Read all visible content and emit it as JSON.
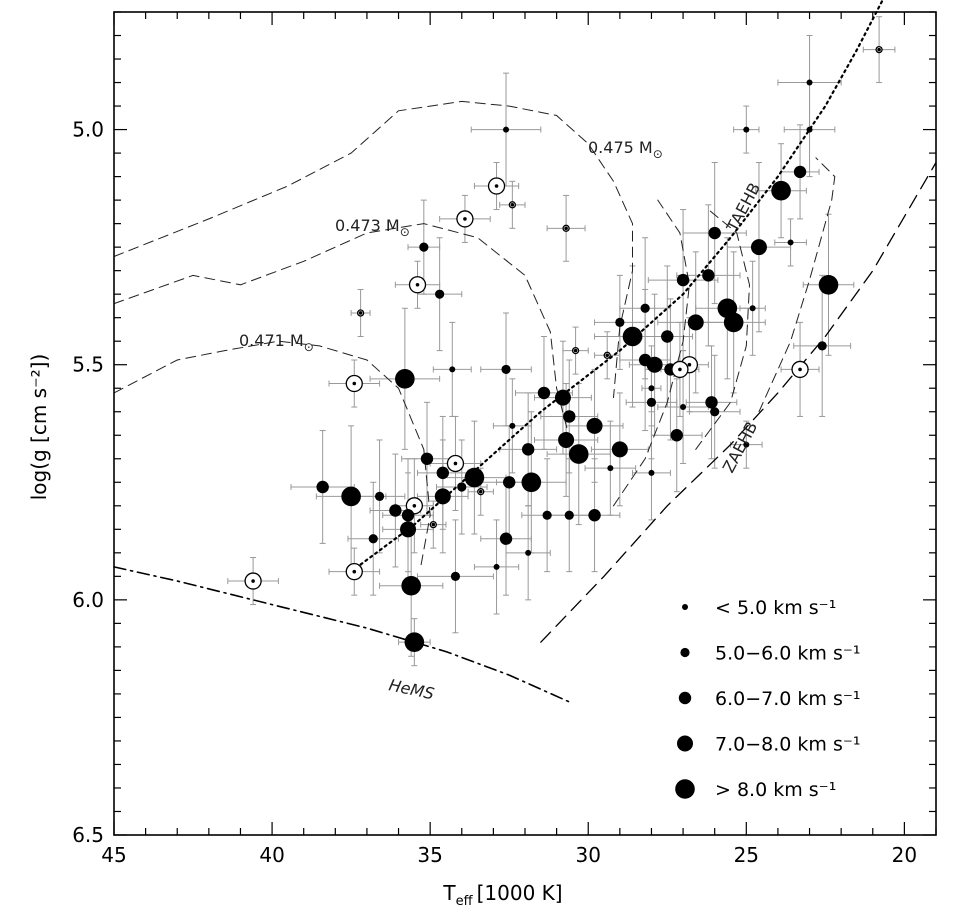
{
  "chart_data": {
    "type": "scatter",
    "xlabel": "T",
    "xlabel_sub": "eff",
    "xlabel_unit": "[1000 K]",
    "ylabel": "log(g [cm s⁻²])",
    "xlim": [
      45,
      19
    ],
    "ylim": [
      6.5,
      4.75
    ],
    "x_ticks": [
      45,
      40,
      35,
      30,
      25,
      20
    ],
    "y_ticks": [
      5.0,
      5.5,
      6.0,
      6.5
    ],
    "x_tick_labels": [
      "45",
      "40",
      "35",
      "30",
      "25",
      "20"
    ],
    "y_tick_labels": [
      "5.0",
      "5.5",
      "6.0",
      "6.5"
    ],
    "grid": false,
    "legend_placement": "bottom-right",
    "legend": [
      {
        "label": "< 5.0 km s⁻¹",
        "size": 1
      },
      {
        "label": "5.0−6.0 km s⁻¹",
        "size": 2
      },
      {
        "label": "6.0−7.0 km s⁻¹",
        "size": 3
      },
      {
        "label": "7.0−8.0 km s⁻¹",
        "size": 4
      },
      {
        "label": "> 8.0 km s⁻¹",
        "size": 5
      }
    ],
    "curve_labels": {
      "m475": "0.475 M",
      "m473": "0.473 M",
      "m471": "0.471 M",
      "taehb": "TAEHB",
      "zaehb": "ZAEHB",
      "hems": "HeMS"
    },
    "lines": [
      {
        "name": "ZAEHB",
        "style": "dashed",
        "points": [
          [
            31.5,
            6.09
          ],
          [
            29.5,
            5.95
          ],
          [
            27.5,
            5.8
          ],
          [
            25.5,
            5.67
          ],
          [
            24.0,
            5.56
          ],
          [
            22.5,
            5.44
          ],
          [
            21.0,
            5.3
          ],
          [
            19.0,
            5.07
          ]
        ]
      },
      {
        "name": "TAEHB",
        "style": "dotted",
        "points": [
          [
            37.5,
            5.94
          ],
          [
            35.5,
            5.84
          ],
          [
            33.5,
            5.72
          ],
          [
            31.5,
            5.6
          ],
          [
            29.0,
            5.47
          ],
          [
            27.0,
            5.35
          ],
          [
            25.5,
            5.23
          ],
          [
            24.0,
            5.1
          ],
          [
            22.5,
            4.95
          ],
          [
            21.5,
            4.83
          ],
          [
            20.5,
            4.7
          ]
        ]
      },
      {
        "name": "HeMS",
        "style": "dash-dot",
        "points": [
          [
            45,
            5.93
          ],
          [
            43,
            5.96
          ],
          [
            40,
            6.01
          ],
          [
            37,
            6.06
          ],
          [
            34.5,
            6.11
          ],
          [
            32.5,
            6.16
          ],
          [
            30.5,
            6.22
          ]
        ]
      },
      {
        "name": "track 0.475",
        "style": "dashed-thin",
        "points": [
          [
            45,
            5.27
          ],
          [
            42,
            5.19
          ],
          [
            39.5,
            5.12
          ],
          [
            37.5,
            5.05
          ],
          [
            36,
            4.96
          ],
          [
            34,
            4.94
          ],
          [
            32.5,
            4.95
          ],
          [
            31,
            4.97
          ],
          [
            30,
            5.03
          ],
          [
            29.2,
            5.11
          ],
          [
            28.6,
            5.2
          ],
          [
            28.6,
            5.3
          ],
          [
            29.0,
            5.42
          ],
          [
            29.2,
            5.57
          ]
        ]
      },
      {
        "name": "track 0.473",
        "style": "dashed-thin",
        "points": [
          [
            45,
            5.37
          ],
          [
            42.5,
            5.31
          ],
          [
            41,
            5.33
          ],
          [
            39,
            5.28
          ],
          [
            37,
            5.22
          ],
          [
            35.2,
            5.2
          ],
          [
            33.5,
            5.23
          ],
          [
            32.0,
            5.31
          ],
          [
            31.2,
            5.43
          ],
          [
            31.0,
            5.55
          ],
          [
            30.5,
            5.68
          ]
        ]
      },
      {
        "name": "track 0.471",
        "style": "dashed-thin",
        "points": [
          [
            45,
            5.56
          ],
          [
            43,
            5.49
          ],
          [
            41.5,
            5.47
          ],
          [
            39.8,
            5.45
          ],
          [
            38.5,
            5.46
          ],
          [
            37,
            5.49
          ],
          [
            36,
            5.55
          ],
          [
            35.2,
            5.68
          ],
          [
            35.0,
            5.82
          ],
          [
            35.3,
            5.93
          ]
        ]
      },
      {
        "name": "track A",
        "style": "dashed-thin",
        "points": [
          [
            29.2,
            5.8
          ],
          [
            28.2,
            5.7
          ],
          [
            27.5,
            5.58
          ],
          [
            27.0,
            5.45
          ],
          [
            26.8,
            5.33
          ],
          [
            27.1,
            5.22
          ],
          [
            27.8,
            5.15
          ]
        ]
      },
      {
        "name": "track B",
        "style": "dashed-thin",
        "points": [
          [
            26.6,
            5.68
          ],
          [
            25.5,
            5.58
          ],
          [
            25.0,
            5.46
          ],
          [
            24.9,
            5.33
          ],
          [
            25.3,
            5.22
          ],
          [
            26.2,
            5.17
          ]
        ]
      },
      {
        "name": "track C",
        "style": "dashed-thin",
        "points": [
          [
            24.6,
            5.6
          ],
          [
            23.6,
            5.45
          ],
          [
            23.0,
            5.32
          ],
          [
            22.3,
            5.15
          ],
          [
            22.2,
            5.1
          ],
          [
            22.8,
            5.06
          ]
        ]
      }
    ],
    "points": [
      {
        "x": 20.8,
        "y": 4.83,
        "size": 1,
        "open": true,
        "xerr": 0.5,
        "yerr": 0.07
      },
      {
        "x": 23.0,
        "y": 4.9,
        "size": 1,
        "open": false,
        "xerr": 1.0,
        "yerr": 0.1
      },
      {
        "x": 23.0,
        "y": 5.0,
        "size": 1,
        "open": false,
        "xerr": 0.8,
        "yerr": 0.1
      },
      {
        "x": 25.0,
        "y": 5.0,
        "size": 1,
        "open": false,
        "xerr": 0.4,
        "yerr": 0.05
      },
      {
        "x": 32.6,
        "y": 5.0,
        "size": 1,
        "open": false,
        "xerr": 1.1,
        "yerr": 0.12
      },
      {
        "x": 23.3,
        "y": 5.09,
        "size": 3,
        "open": false,
        "xerr": 0.6,
        "yerr": 0.1
      },
      {
        "x": 23.9,
        "y": 5.13,
        "size": 5,
        "open": false,
        "xerr": 0.8,
        "yerr": 0.1
      },
      {
        "x": 32.9,
        "y": 5.12,
        "size": 4,
        "open": true,
        "xerr": 0.7,
        "yerr": 0.05
      },
      {
        "x": 32.4,
        "y": 5.16,
        "size": 1,
        "open": true,
        "xerr": 0.4,
        "yerr": 0.05
      },
      {
        "x": 33.9,
        "y": 5.19,
        "size": 4,
        "open": true,
        "xerr": 0.8,
        "yerr": 0.05
      },
      {
        "x": 30.7,
        "y": 5.21,
        "size": 1,
        "open": true,
        "xerr": 0.6,
        "yerr": 0.07
      },
      {
        "x": 26.0,
        "y": 5.22,
        "size": 3,
        "open": false,
        "xerr": 1.0,
        "yerr": 0.15
      },
      {
        "x": 24.6,
        "y": 5.25,
        "size": 4,
        "open": false,
        "xerr": 1.0,
        "yerr": 0.18
      },
      {
        "x": 23.6,
        "y": 5.24,
        "size": 1,
        "open": false,
        "xerr": 0.5,
        "yerr": 0.05
      },
      {
        "x": 35.2,
        "y": 5.25,
        "size": 2,
        "open": false,
        "xerr": 0.5,
        "yerr": 0.1
      },
      {
        "x": 26.2,
        "y": 5.31,
        "size": 3,
        "open": false,
        "xerr": 1.0,
        "yerr": 0.15
      },
      {
        "x": 27.0,
        "y": 5.32,
        "size": 3,
        "open": false,
        "xerr": 1.1,
        "yerr": 0.15
      },
      {
        "x": 22.4,
        "y": 5.33,
        "size": 5,
        "open": false,
        "xerr": 0.8,
        "yerr": 0.15
      },
      {
        "x": 35.4,
        "y": 5.33,
        "size": 4,
        "open": true,
        "xerr": 0.7,
        "yerr": 0.05
      },
      {
        "x": 34.7,
        "y": 5.35,
        "size": 2,
        "open": false,
        "xerr": 0.7,
        "yerr": 0.12
      },
      {
        "x": 37.2,
        "y": 5.39,
        "size": 1,
        "open": true,
        "xerr": 0.3,
        "yerr": 0.05
      },
      {
        "x": 24.8,
        "y": 5.38,
        "size": 1,
        "open": false,
        "xerr": 0.4,
        "yerr": 0.1
      },
      {
        "x": 25.6,
        "y": 5.38,
        "size": 5,
        "open": false,
        "xerr": 1.0,
        "yerr": 0.15
      },
      {
        "x": 26.6,
        "y": 5.41,
        "size": 4,
        "open": false,
        "xerr": 1.2,
        "yerr": 0.15
      },
      {
        "x": 25.4,
        "y": 5.41,
        "size": 5,
        "open": false,
        "xerr": 1.0,
        "yerr": 0.15
      },
      {
        "x": 28.6,
        "y": 5.44,
        "size": 5,
        "open": false,
        "xerr": 1.2,
        "yerr": 0.15
      },
      {
        "x": 28.2,
        "y": 5.38,
        "size": 2,
        "open": false,
        "xerr": 0.8,
        "yerr": 0.15
      },
      {
        "x": 27.5,
        "y": 5.44,
        "size": 3,
        "open": false,
        "xerr": 0.8,
        "yerr": 0.15
      },
      {
        "x": 29.0,
        "y": 5.41,
        "size": 2,
        "open": false,
        "xerr": 0.8,
        "yerr": 0.1
      },
      {
        "x": 22.6,
        "y": 5.46,
        "size": 2,
        "open": false,
        "xerr": 0.9,
        "yerr": 0.15
      },
      {
        "x": 30.4,
        "y": 5.47,
        "size": 1,
        "open": true,
        "xerr": 0.4,
        "yerr": 0.05
      },
      {
        "x": 29.4,
        "y": 5.48,
        "size": 1,
        "open": true,
        "xerr": 0.4,
        "yerr": 0.05
      },
      {
        "x": 28.2,
        "y": 5.49,
        "size": 3,
        "open": false,
        "xerr": 0.8,
        "yerr": 0.15
      },
      {
        "x": 27.9,
        "y": 5.5,
        "size": 4,
        "open": false,
        "xerr": 0.8,
        "yerr": 0.15
      },
      {
        "x": 27.4,
        "y": 5.51,
        "size": 3,
        "open": false,
        "xerr": 0.8,
        "yerr": 0.15
      },
      {
        "x": 26.8,
        "y": 5.5,
        "size": 4,
        "open": true,
        "xerr": 0.6,
        "yerr": 0.1
      },
      {
        "x": 27.1,
        "y": 5.51,
        "size": 4,
        "open": true,
        "xerr": 0.6,
        "yerr": 0.1
      },
      {
        "x": 23.3,
        "y": 5.51,
        "size": 4,
        "open": true,
        "xerr": 0.6,
        "yerr": 0.1
      },
      {
        "x": 32.6,
        "y": 5.51,
        "size": 2,
        "open": false,
        "xerr": 0.8,
        "yerr": 0.12
      },
      {
        "x": 34.3,
        "y": 5.51,
        "size": 1,
        "open": false,
        "xerr": 0.6,
        "yerr": 0.1
      },
      {
        "x": 28.0,
        "y": 5.55,
        "size": 1,
        "open": false,
        "xerr": 0.3,
        "yerr": 0.05
      },
      {
        "x": 35.8,
        "y": 5.53,
        "size": 5,
        "open": false,
        "xerr": 1.1,
        "yerr": 0.15
      },
      {
        "x": 37.4,
        "y": 5.54,
        "size": 4,
        "open": true,
        "xerr": 0.8,
        "yerr": 0.05
      },
      {
        "x": 31.4,
        "y": 5.56,
        "size": 3,
        "open": false,
        "xerr": 0.9,
        "yerr": 0.12
      },
      {
        "x": 30.8,
        "y": 5.57,
        "size": 4,
        "open": false,
        "xerr": 0.9,
        "yerr": 0.12
      },
      {
        "x": 28.0,
        "y": 5.58,
        "size": 2,
        "open": false,
        "xerr": 0.8,
        "yerr": 0.12
      },
      {
        "x": 26.1,
        "y": 5.58,
        "size": 3,
        "open": false,
        "xerr": 0.8,
        "yerr": 0.12
      },
      {
        "x": 27.0,
        "y": 5.59,
        "size": 1,
        "open": false,
        "xerr": 0.8,
        "yerr": 0.12
      },
      {
        "x": 26.0,
        "y": 5.6,
        "size": 2,
        "open": false,
        "xerr": 0.8,
        "yerr": 0.12
      },
      {
        "x": 30.6,
        "y": 5.61,
        "size": 3,
        "open": false,
        "xerr": 0.9,
        "yerr": 0.12
      },
      {
        "x": 29.8,
        "y": 5.63,
        "size": 4,
        "open": false,
        "xerr": 0.9,
        "yerr": 0.12
      },
      {
        "x": 32.4,
        "y": 5.63,
        "size": 1,
        "open": false,
        "xerr": 0.6,
        "yerr": 0.1
      },
      {
        "x": 27.2,
        "y": 5.65,
        "size": 3,
        "open": false,
        "xerr": 0.8,
        "yerr": 0.12
      },
      {
        "x": 30.7,
        "y": 5.66,
        "size": 4,
        "open": false,
        "xerr": 1.0,
        "yerr": 0.12
      },
      {
        "x": 25.0,
        "y": 5.67,
        "size": 1,
        "open": false,
        "xerr": 0.5,
        "yerr": 0.05
      },
      {
        "x": 31.9,
        "y": 5.68,
        "size": 3,
        "open": false,
        "xerr": 0.9,
        "yerr": 0.12
      },
      {
        "x": 29.0,
        "y": 5.68,
        "size": 4,
        "open": false,
        "xerr": 0.9,
        "yerr": 0.12
      },
      {
        "x": 30.3,
        "y": 5.69,
        "size": 5,
        "open": false,
        "xerr": 1.0,
        "yerr": 0.15
      },
      {
        "x": 35.1,
        "y": 5.7,
        "size": 3,
        "open": false,
        "xerr": 0.8,
        "yerr": 0.12
      },
      {
        "x": 34.2,
        "y": 5.71,
        "size": 4,
        "open": true,
        "xerr": 0.8,
        "yerr": 0.1
      },
      {
        "x": 29.3,
        "y": 5.72,
        "size": 1,
        "open": false,
        "xerr": 0.8,
        "yerr": 0.1
      },
      {
        "x": 28.0,
        "y": 5.73,
        "size": 1,
        "open": false,
        "xerr": 0.6,
        "yerr": 0.1
      },
      {
        "x": 34.6,
        "y": 5.73,
        "size": 3,
        "open": false,
        "xerr": 0.8,
        "yerr": 0.12
      },
      {
        "x": 33.6,
        "y": 5.74,
        "size": 5,
        "open": false,
        "xerr": 1.0,
        "yerr": 0.12
      },
      {
        "x": 34.0,
        "y": 5.76,
        "size": 2,
        "open": false,
        "xerr": 0.8,
        "yerr": 0.1
      },
      {
        "x": 32.5,
        "y": 5.75,
        "size": 3,
        "open": false,
        "xerr": 0.9,
        "yerr": 0.12
      },
      {
        "x": 31.8,
        "y": 5.75,
        "size": 5,
        "open": false,
        "xerr": 1.1,
        "yerr": 0.15
      },
      {
        "x": 38.4,
        "y": 5.76,
        "size": 3,
        "open": false,
        "xerr": 1.0,
        "yerr": 0.12
      },
      {
        "x": 33.4,
        "y": 5.77,
        "size": 1,
        "open": true,
        "xerr": 0.4,
        "yerr": 0.05
      },
      {
        "x": 37.5,
        "y": 5.78,
        "size": 5,
        "open": false,
        "xerr": 1.1,
        "yerr": 0.15
      },
      {
        "x": 36.6,
        "y": 5.78,
        "size": 2,
        "open": false,
        "xerr": 0.8,
        "yerr": 0.12
      },
      {
        "x": 34.6,
        "y": 5.78,
        "size": 4,
        "open": false,
        "xerr": 0.8,
        "yerr": 0.12
      },
      {
        "x": 35.5,
        "y": 5.8,
        "size": 4,
        "open": true,
        "xerr": 0.6,
        "yerr": 0.1
      },
      {
        "x": 36.1,
        "y": 5.81,
        "size": 3,
        "open": false,
        "xerr": 0.8,
        "yerr": 0.12
      },
      {
        "x": 35.7,
        "y": 5.82,
        "size": 3,
        "open": false,
        "xerr": 0.8,
        "yerr": 0.12
      },
      {
        "x": 31.3,
        "y": 5.82,
        "size": 2,
        "open": false,
        "xerr": 0.8,
        "yerr": 0.12
      },
      {
        "x": 30.6,
        "y": 5.82,
        "size": 2,
        "open": false,
        "xerr": 0.8,
        "yerr": 0.12
      },
      {
        "x": 29.8,
        "y": 5.82,
        "size": 3,
        "open": false,
        "xerr": 0.8,
        "yerr": 0.12
      },
      {
        "x": 34.9,
        "y": 5.84,
        "size": 1,
        "open": true,
        "xerr": 0.4,
        "yerr": 0.05
      },
      {
        "x": 35.7,
        "y": 5.85,
        "size": 4,
        "open": false,
        "xerr": 0.8,
        "yerr": 0.12
      },
      {
        "x": 36.8,
        "y": 5.87,
        "size": 2,
        "open": false,
        "xerr": 0.8,
        "yerr": 0.12
      },
      {
        "x": 32.6,
        "y": 5.87,
        "size": 3,
        "open": false,
        "xerr": 0.8,
        "yerr": 0.12
      },
      {
        "x": 31.9,
        "y": 5.9,
        "size": 1,
        "open": false,
        "xerr": 0.7,
        "yerr": 0.1
      },
      {
        "x": 32.9,
        "y": 5.93,
        "size": 1,
        "open": false,
        "xerr": 0.7,
        "yerr": 0.1
      },
      {
        "x": 37.4,
        "y": 5.94,
        "size": 4,
        "open": true,
        "xerr": 0.8,
        "yerr": 0.05
      },
      {
        "x": 40.6,
        "y": 5.96,
        "size": 4,
        "open": true,
        "xerr": 0.8,
        "yerr": 0.05
      },
      {
        "x": 34.2,
        "y": 5.95,
        "size": 2,
        "open": false,
        "xerr": 1.2,
        "yerr": 0.12
      },
      {
        "x": 35.6,
        "y": 5.97,
        "size": 5,
        "open": false,
        "xerr": 1.0,
        "yerr": 0.15
      },
      {
        "x": 35.5,
        "y": 6.09,
        "size": 5,
        "open": false,
        "xerr": 0.5,
        "yerr": 0.05
      }
    ]
  }
}
